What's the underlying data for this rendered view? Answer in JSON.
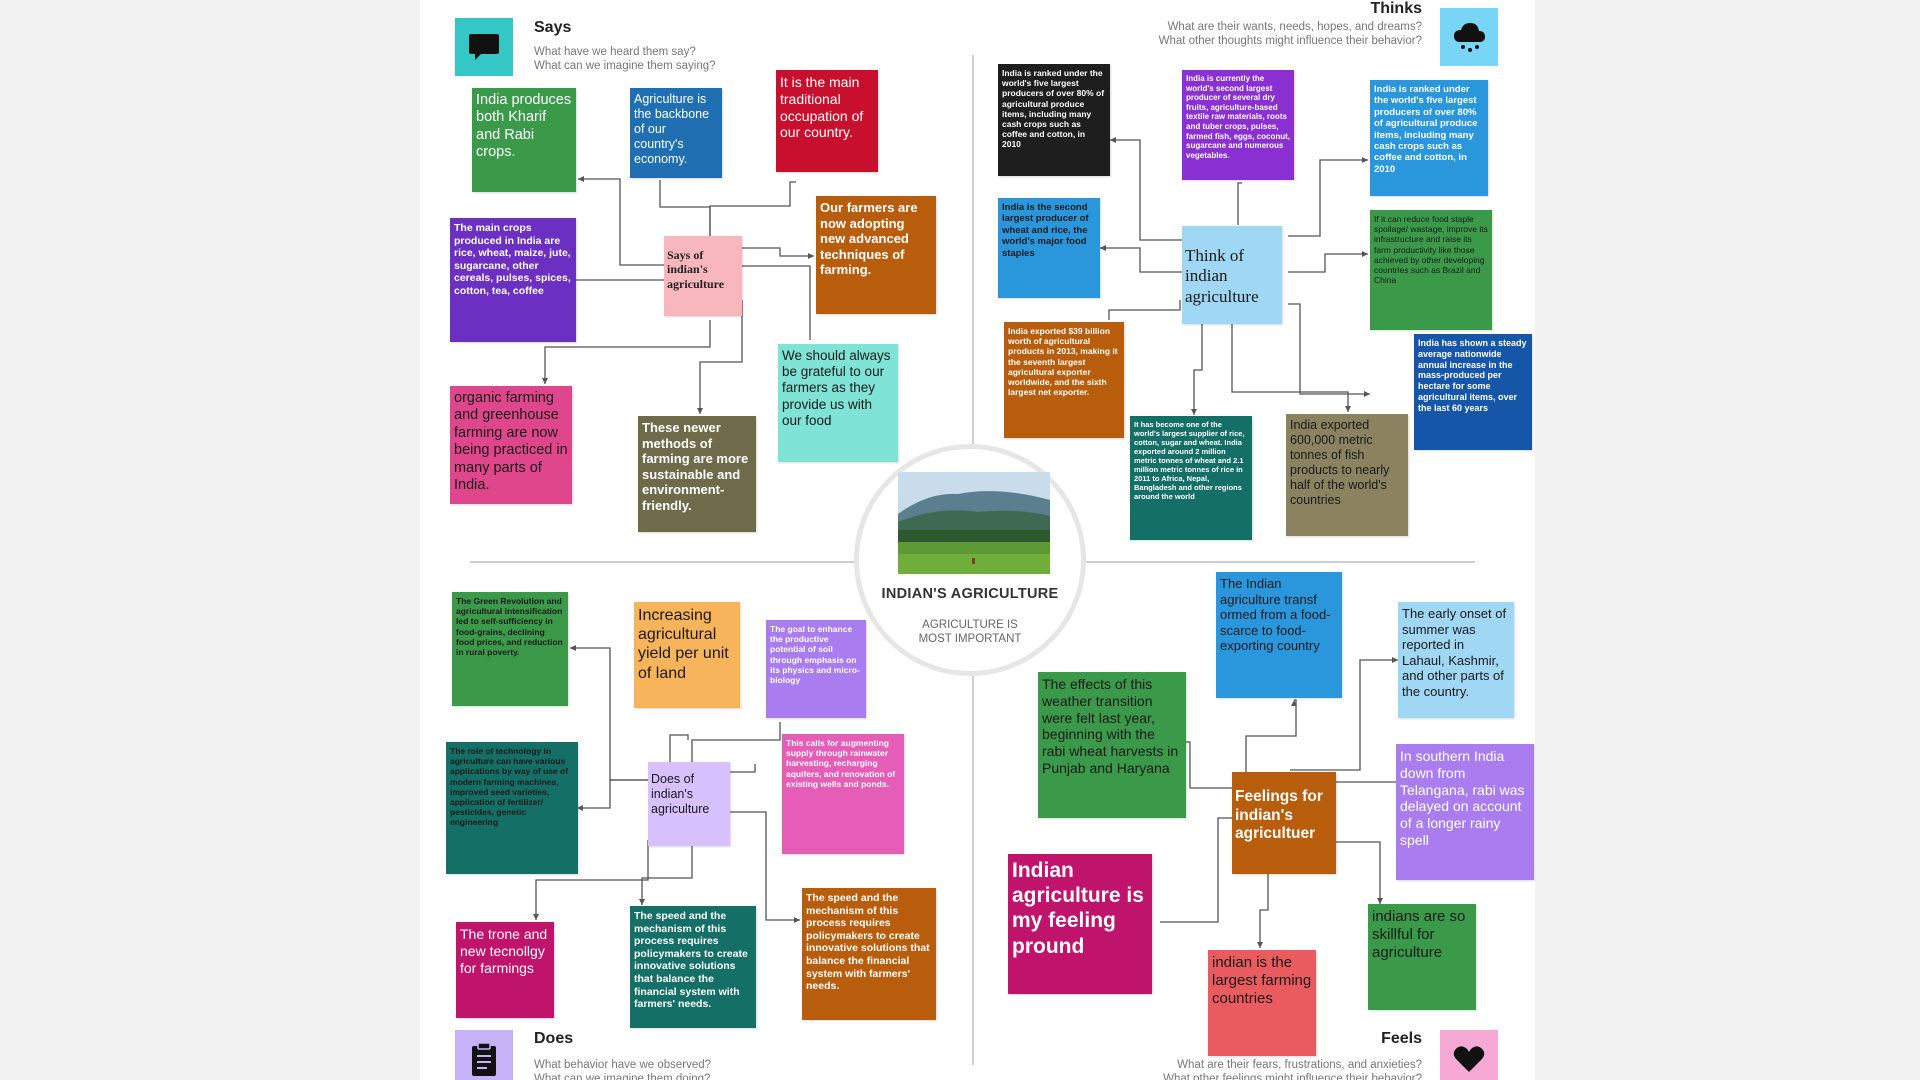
{
  "colors": {
    "green": "#3b9a4a",
    "blue": "#1f6fb2",
    "red": "#c8102e",
    "purple": "#6b2fc2",
    "pink": "#f8b6bd",
    "orange": "#b85d0c",
    "teal_light": "#7fe3d6",
    "pink_strong": "#e0468c",
    "olive": "#6f6a4a",
    "dark": "#1e1e1e",
    "violet": "#8a2fd1",
    "sky": "#2a97dd",
    "pale_blue": "#9fd7f5",
    "teal_dark": "#146f66",
    "olive_light": "#8b8360",
    "royal": "#1656a8",
    "amber": "#f7b45a",
    "lavender": "#a97df0",
    "lilac": "#d7c1ff",
    "magenta_pink": "#e65db8",
    "maroon": "#c0136b",
    "coral": "#ea5b60",
    "says_icon_bg": "#35c6c6",
    "thinks_icon_bg": "#79d5f5",
    "does_icon_bg": "#c6b3f7",
    "feels_icon_bg": "#f7a9d6"
  },
  "quadrants": {
    "says": {
      "title": "Says",
      "subtitle": "What have we heard them say?\nWhat can we imagine them saying?",
      "icon": "speech-bubble-icon"
    },
    "thinks": {
      "title": "Thinks",
      "subtitle": "What are their wants, needs, hopes, and dreams?\nWhat other thoughts might influence their behavior?",
      "icon": "cloud-rain-icon"
    },
    "does": {
      "title": "Does",
      "subtitle": "What behavior have we observed?\nWhat can we imagine them doing?",
      "icon": "clipboard-icon"
    },
    "feels": {
      "title": "Feels",
      "subtitle": "What are their fears, frustrations, and anxieties?\nWhat other feelings might influence their behavior?",
      "icon": "heart-icon"
    }
  },
  "center": {
    "title": "INDIAN'S AGRICULTURE",
    "subtitle": "AGRICULTURE IS\nMOST IMPORTANT"
  },
  "notes": {
    "says_hub": "Says of indian's agriculture",
    "says_1": "India produces both Kharif and Rabi crops.",
    "says_2": "Agriculture is the backbone of our country's economy.",
    "says_3": "It is the main traditional occupation of our country.",
    "says_4": "The main crops produced in India are rice, wheat, maize, jute, sugarcane, other cereals, pulses, spices, cotton, tea, coffee",
    "says_5": "Our farmers are now adopting new advanced techniques of farming.",
    "says_6": "We should always be grateful to our farmers as they provide us with our food",
    "says_7": "organic farming and greenhouse farming are now being practiced in many parts of India.",
    "says_8": "These newer methods of farming are more sustainable and environment-friendly.",
    "thinks_hub": "Think of indian agriculture",
    "thinks_1": "India is ranked under the world's five largest producers of over 80% of agricultural produce items, including many cash crops such as coffee and cotton, in 2010",
    "thinks_2": "India is currently the world's second largest producer of several dry fruits, agriculture-based textile raw materials, roots and tuber crops, pulses, farmed fish, eggs, coconut, sugarcane and numerous vegetables.",
    "thinks_3": "India is ranked under the world's five largest producers of over 80% of agricultural produce items, including many cash crops such as coffee and cotton, in 2010",
    "thinks_4": "India is the second largest producer of wheat and rice, the world's major food staples",
    "thinks_5": "If it can reduce food staple spoilage/ wastage, improve its infrastructure and raise its farm productivity like those achieved by other developing countries such as Brazil and China",
    "thinks_6": "India exported $39 billion worth of agricultural products in 2013, making it the seventh largest agricultural exporter worldwide, and the sixth largest net exporter.",
    "thinks_7": "India has shown a steady average nationwide annual increase in the mass-produced per hectare for some agricultural items, over the last 60 years",
    "thinks_8": "It has become one of the world's largest supplier of rice, cotton, sugar and wheat. India exported around 2 million metric tonnes of wheat and 2.1 million metric tonnes of rice in 2011 to Africa, Nepal, Bangladesh and other regions around the world",
    "thinks_9": "India exported 600,000 metric tonnes of fish products to nearly half of the world's countries",
    "does_hub": "Does of indian's agriculture",
    "does_1": "The Green Revolution and agricultural intensification led to self-sufficiency in food-grains, declining food prices, and reduction in rural poverty.",
    "does_2": "Increasing agricultural yield per unit of land",
    "does_3": "The goal to enhance the productive potential of soil through emphasis on its physics and micro-biology",
    "does_4": "The role of technology in agriculture can have various applications by way of use of modern farming machines, improved seed varieties, application of fertilizer/ pesticides, genetic engineering",
    "does_5": "This calls for augmenting supply through rainwater harvesting, recharging aquifers, and renovation of existing wells and ponds.",
    "does_6": "The trone and new tecnollgy for farmings",
    "does_7": "The speed and the mechanism of this process requires policymakers to create innovative solutions that balance the financial system with farmers' needs.",
    "does_8": "The speed and the mechanism of this process requires policymakers to create innovative solutions that balance the financial system with farmers' needs.",
    "feels_hub": "Feelings for indian's agricultuer",
    "feels_1": "The Indian agriculture transf ormed from a food-scarce to food-exporting country",
    "feels_2": "The early onset of summer was reported in Lahaul, Kashmir, and other parts of the country.",
    "feels_3": "The effects of this weather transition were felt last year, beginning with the rabi wheat harvests in Punjab and Haryana",
    "feels_4": "In southern India down from Telangana, rabi was delayed on account of a longer rainy spell",
    "feels_5": "Indian agriculture is my feeling pround",
    "feels_6": "indian is the largest farming countries",
    "feels_7": "indians are so skillful for agriculture"
  }
}
